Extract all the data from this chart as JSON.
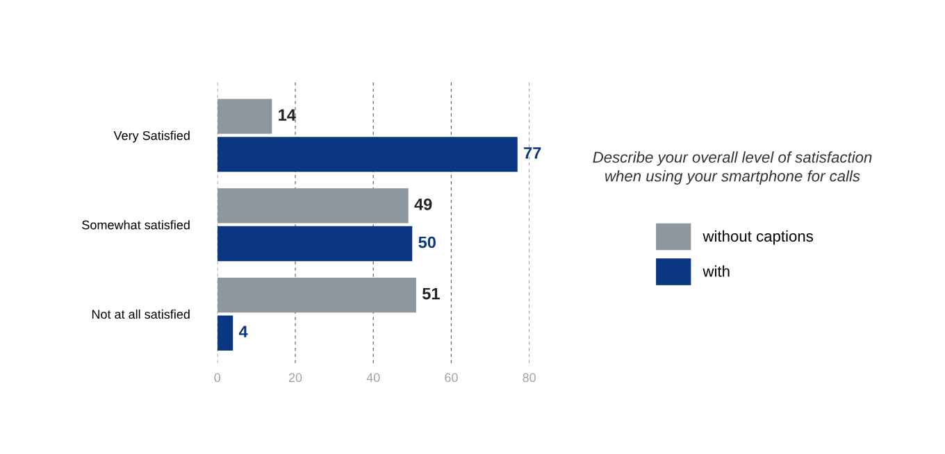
{
  "chart_data": {
    "type": "bar",
    "orientation": "horizontal",
    "title": "Describe your overall level of satisfaction\nwhen using your smartphone for calls",
    "categories": [
      "Very Satisfied",
      "Somewhat satisfied",
      "Not at all satisfied"
    ],
    "series": [
      {
        "name": "without captions",
        "color": "#8c979e",
        "values": [
          14,
          49,
          51
        ]
      },
      {
        "name": "with",
        "color": "#0b3682",
        "values": [
          77,
          50,
          4
        ]
      }
    ],
    "xlim": [
      0,
      80
    ],
    "xticks": [
      0,
      20,
      40,
      60,
      80
    ],
    "grid": "x",
    "legend": "right",
    "data_labels": true
  }
}
